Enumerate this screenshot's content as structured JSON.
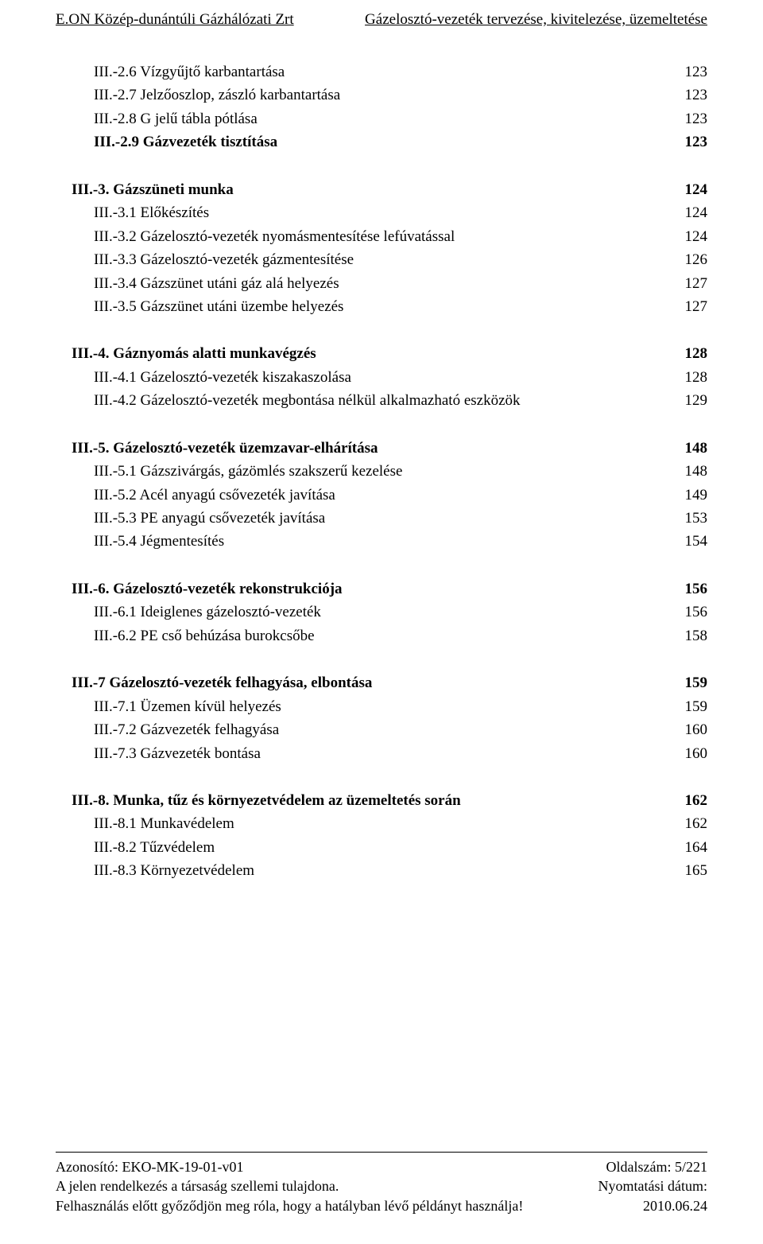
{
  "header": {
    "left": "E.ON Közép-dunántúli Gázhálózati Zrt",
    "right": "Gázelosztó-vezeték tervezése, kivitelezése, üzemeltetése"
  },
  "toc": [
    {
      "indent": true,
      "rows": [
        {
          "label": "III.-2.6 Vízgyűjtő karbantartása",
          "page": "123",
          "bold": false
        },
        {
          "label": "III.-2.7 Jelzőoszlop, zászló karbantartása",
          "page": "123",
          "bold": false
        },
        {
          "label": "III.-2.8 G jelű tábla pótlása",
          "page": "123",
          "bold": false
        },
        {
          "label": "III.-2.9 Gázvezeték tisztítása",
          "page": "123",
          "bold": true
        }
      ]
    },
    {
      "head": {
        "label": "III.-3. Gázszüneti munka",
        "page": "124"
      },
      "rows": [
        {
          "label": "III.-3.1 Előkészítés",
          "page": "124",
          "bold": false
        },
        {
          "label": "III.-3.2 Gázelosztó-vezeték nyomásmentesítése lefúvatással",
          "page": "124",
          "bold": false
        },
        {
          "label": "III.-3.3 Gázelosztó-vezeték gázmentesítése",
          "page": "126",
          "bold": false
        },
        {
          "label": "III.-3.4 Gázszünet utáni gáz alá helyezés",
          "page": "127",
          "bold": false
        },
        {
          "label": "III.-3.5 Gázszünet utáni üzembe helyezés",
          "page": "127",
          "bold": false
        }
      ]
    },
    {
      "head": {
        "label": "III.-4. Gáznyomás alatti munkavégzés",
        "page": "128"
      },
      "rows": [
        {
          "label": "III.-4.1 Gázelosztó-vezeték kiszakaszolása",
          "page": "128",
          "bold": false
        },
        {
          "label": "III.-4.2 Gázelosztó-vezeték megbontása nélkül alkalmazható eszközök",
          "page": "129",
          "bold": false
        }
      ]
    },
    {
      "head": {
        "label": "III.-5. Gázelosztó-vezeték üzemzavar-elhárítása",
        "page": "148"
      },
      "rows": [
        {
          "label": "III.-5.1 Gázszivárgás, gázömlés szakszerű kezelése",
          "page": "148",
          "bold": false
        },
        {
          "label": "III.-5.2 Acél anyagú csővezeték javítása",
          "page": "149",
          "bold": false
        },
        {
          "label": "III.-5.3 PE anyagú csővezeték javítása",
          "page": "153",
          "bold": false
        },
        {
          "label": "III.-5.4 Jégmentesítés",
          "page": "154",
          "bold": false
        }
      ]
    },
    {
      "head": {
        "label": "III.-6. Gázelosztó-vezeték rekonstrukciója",
        "page": "156"
      },
      "rows": [
        {
          "label": "III.-6.1 Ideiglenes gázelosztó-vezeték",
          "page": "156",
          "bold": false
        },
        {
          "label": "III.-6.2 PE cső behúzása burokcsőbe",
          "page": "158",
          "bold": false
        }
      ]
    },
    {
      "head": {
        "label": "III.-7 Gázelosztó-vezeték felhagyása, elbontása",
        "page": "159"
      },
      "rows": [
        {
          "label": "III.-7.1 Üzemen kívül helyezés",
          "page": "159",
          "bold": false
        },
        {
          "label": "III.-7.2 Gázvezeték felhagyása",
          "page": "160",
          "bold": false
        },
        {
          "label": "III.-7.3 Gázvezeték bontása",
          "page": "160",
          "bold": false
        }
      ]
    },
    {
      "head": {
        "label": "III.-8. Munka, tűz és környezetvédelem az üzemeltetés során",
        "page": "162"
      },
      "rows": [
        {
          "label": "III.-8.1 Munkavédelem",
          "page": "162",
          "bold": false
        },
        {
          "label": "III.-8.2 Tűzvédelem",
          "page": "164",
          "bold": false
        },
        {
          "label": "III.-8.3 Környezetvédelem",
          "page": "165",
          "bold": false
        }
      ]
    }
  ],
  "footer": {
    "left1": "Azonosító: EKO-MK-19-01-v01",
    "left2": "A jelen rendelkezés a társaság szellemi tulajdona.",
    "left3": "Felhasználás előtt győződjön meg róla, hogy a hatályban lévő példányt használja!",
    "right1": "Oldalszám: 5/221",
    "right2": "Nyomtatási dátum:",
    "right3": "2010.06.24"
  }
}
